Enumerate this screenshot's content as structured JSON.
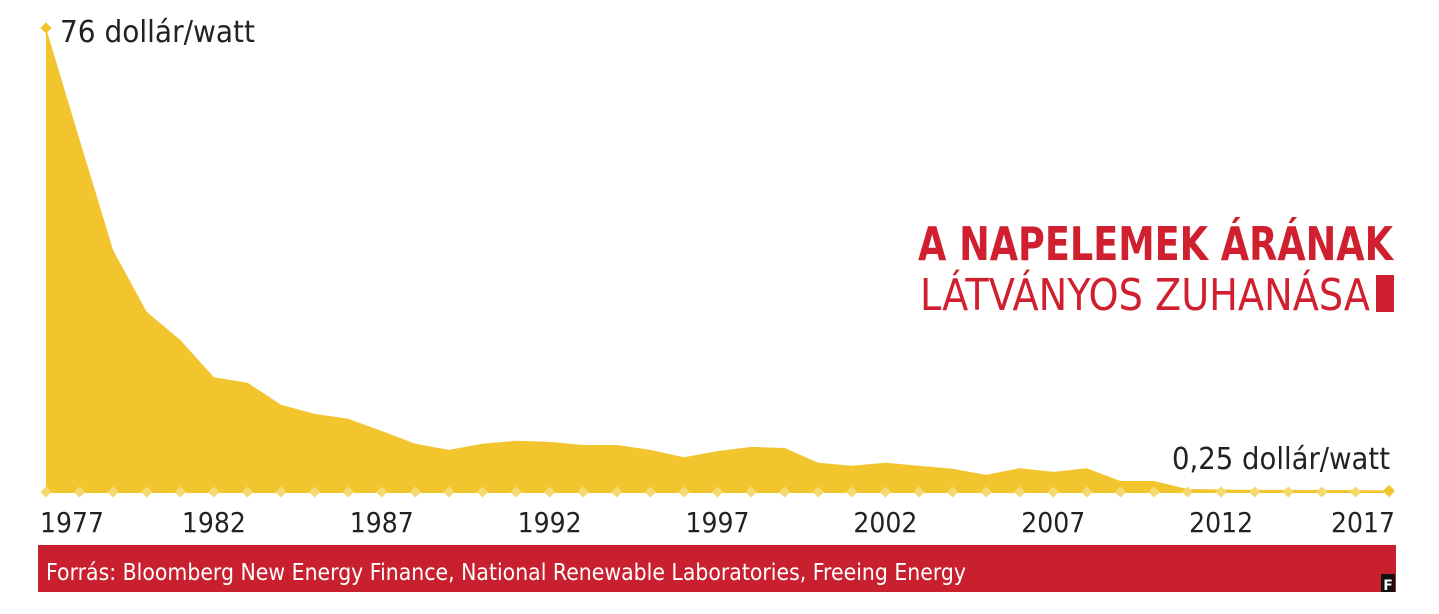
{
  "chart_data": {
    "type": "area",
    "title": [
      "A NAPELEMEK ÁRÁNAK",
      "LÁTVÁNYOS ZUHANÁSA"
    ],
    "annotations": [
      "76 dollár/watt",
      "0,25 dollár/watt"
    ],
    "source": "Forrás: Bloomberg New Energy Finance, National Renewable Laboratories, Freeing Energy",
    "logo": "F",
    "color": "#f2c42e",
    "x": [
      1977,
      1978,
      1979,
      1980,
      1981,
      1982,
      1983,
      1984,
      1985,
      1986,
      1987,
      1988,
      1989,
      1990,
      1991,
      1992,
      1993,
      1994,
      1995,
      1996,
      1997,
      1998,
      1999,
      2000,
      2001,
      2002,
      2003,
      2004,
      2005,
      2006,
      2007,
      2008,
      2009,
      2010,
      2011,
      2012,
      2013,
      2014,
      2015,
      2016,
      2017
    ],
    "values": [
      76,
      57.7,
      39.6,
      29.5,
      24.9,
      18.8,
      17.9,
      14.3,
      12.8,
      12.0,
      10.0,
      7.9,
      6.9,
      7.9,
      8.4,
      8.2,
      7.7,
      7.7,
      6.9,
      5.7,
      6.7,
      7.4,
      7.2,
      4.8,
      4.3,
      4.8,
      4.3,
      3.8,
      2.8,
      3.9,
      3.3,
      3.9,
      1.8,
      1.8,
      0.5,
      0.4,
      0.35,
      0.35,
      0.33,
      0.3,
      0.25
    ],
    "xlim": [
      1977,
      2017
    ],
    "xticks": [
      1977,
      1982,
      1987,
      1992,
      1997,
      2002,
      2007,
      2012,
      2017
    ],
    "ylim": [
      0,
      76
    ]
  }
}
